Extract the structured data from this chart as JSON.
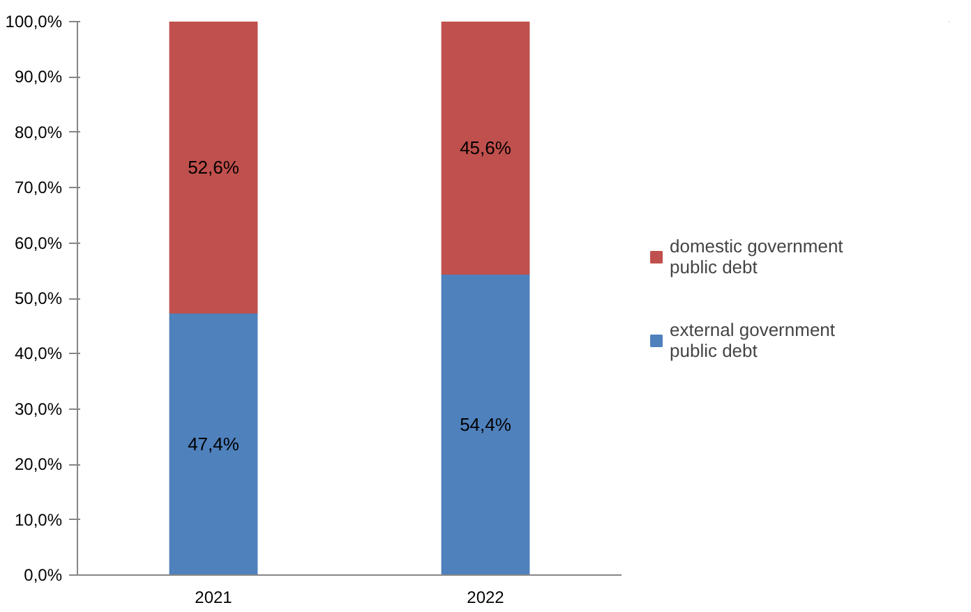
{
  "chart_data": {
    "type": "bar",
    "stacked": true,
    "categories": [
      "2021",
      "2022"
    ],
    "series": [
      {
        "name": "external government public debt",
        "color": "#4f81bd",
        "values": [
          47.4,
          54.4
        ],
        "value_labels": [
          "47,4%",
          "54,4%"
        ]
      },
      {
        "name": "domestic government public debt",
        "color": "#c0504d",
        "values": [
          52.6,
          45.6
        ],
        "value_labels": [
          "52,6%",
          "45,6%"
        ]
      }
    ],
    "ylim": [
      0,
      100
    ],
    "yticks": [
      {
        "value": 0,
        "label": "0,0%"
      },
      {
        "value": 10,
        "label": "10,0%"
      },
      {
        "value": 20,
        "label": "20,0%"
      },
      {
        "value": 30,
        "label": "30,0%"
      },
      {
        "value": 40,
        "label": "40,0%"
      },
      {
        "value": 50,
        "label": "50,0%"
      },
      {
        "value": 60,
        "label": "60,0%"
      },
      {
        "value": 70,
        "label": "70,0%"
      },
      {
        "value": 80,
        "label": "80,0%"
      },
      {
        "value": 90,
        "label": "90,0%"
      },
      {
        "value": 100,
        "label": "100,0%"
      }
    ],
    "grid": false,
    "legend": "right"
  }
}
